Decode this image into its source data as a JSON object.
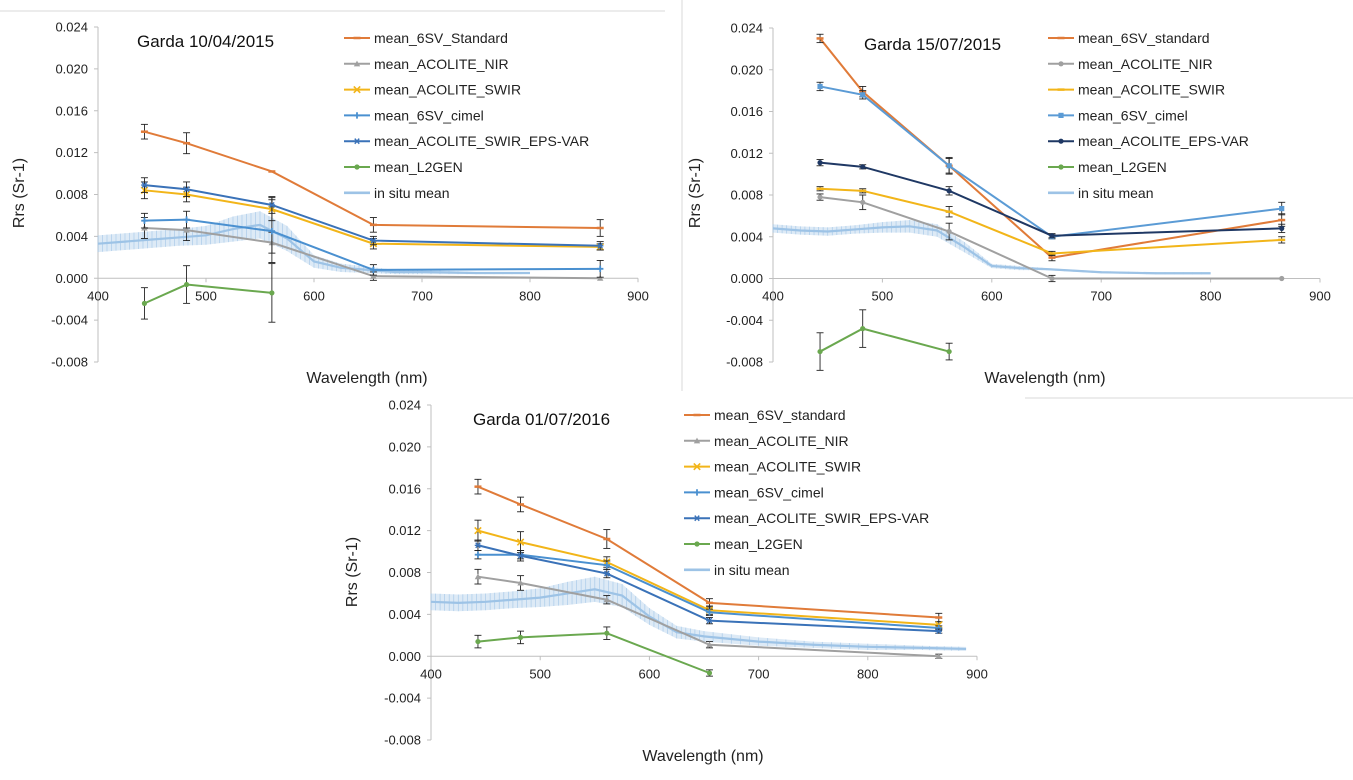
{
  "chart_data": [
    {
      "type": "line",
      "title": "Garda 10/04/2015",
      "xlabel": "Wavelength (nm)",
      "ylabel": "Rrs (Sr-1)",
      "xlim": [
        400,
        900
      ],
      "ylim": [
        -0.008,
        0.024
      ],
      "x_ticks": [
        "400",
        "500",
        "600",
        "700",
        "800",
        "900"
      ],
      "y_ticks": [
        "0.024",
        "0.020",
        "0.016",
        "0.012",
        "0.008",
        "0.004",
        "0.000",
        "-0.004",
        "-0.008"
      ],
      "grid": false,
      "legend_position": "top-right",
      "series": [
        {
          "name": "mean_6SV_Standard",
          "color": "#E07B39",
          "marker": "dash",
          "x": [
            443,
            482,
            561,
            655,
            865
          ],
          "y": [
            0.014,
            0.0129,
            0.0102,
            0.0051,
            0.0048
          ],
          "err": [
            0.0007,
            0.001,
            0.0,
            0.0007,
            0.0008
          ]
        },
        {
          "name": "mean_ACOLITE_NIR",
          "color": "#A0A0A0",
          "marker": "triangle",
          "x": [
            443,
            482,
            561,
            655,
            865
          ],
          "y": [
            0.0048,
            0.0046,
            0.0034,
            0.0002,
            0.0
          ],
          "err": [
            0.001,
            0.001,
            0.001,
            0.0004,
            0.0
          ]
        },
        {
          "name": "mean_ACOLITE_SWIR",
          "color": "#F2B519",
          "marker": "x",
          "x": [
            443,
            482,
            561,
            655,
            865
          ],
          "y": [
            0.0084,
            0.008,
            0.0066,
            0.0033,
            0.003
          ],
          "err": [
            0.0008,
            0.0007,
            0.0011,
            0.0005,
            0.0003
          ]
        },
        {
          "name": "mean_6SV_cimel",
          "color": "#4A90D0",
          "marker": "plus",
          "x": [
            443,
            482,
            561,
            655,
            865
          ],
          "y": [
            0.0055,
            0.0056,
            0.0045,
            0.0008,
            0.0009
          ],
          "err": [
            0.0007,
            0.0008,
            0.003,
            0.0005,
            0.0008
          ]
        },
        {
          "name": "mean_ACOLITE_SWIR_EPS-VAR",
          "color": "#3A72B8",
          "marker": "asterisk",
          "x": [
            443,
            482,
            561,
            655,
            865
          ],
          "y": [
            0.0089,
            0.0085,
            0.007,
            0.0036,
            0.0031
          ],
          "err": [
            0.0007,
            0.0007,
            0.0008,
            0.0004,
            0.0004
          ]
        },
        {
          "name": "mean_L2GEN",
          "color": "#6AA84F",
          "marker": "dot",
          "x": [
            443,
            482,
            561
          ],
          "y": [
            -0.0024,
            -0.0006,
            -0.0014
          ],
          "err": [
            0.0015,
            0.0018,
            0.0028
          ]
        },
        {
          "name": "in situ mean",
          "color": "#9DC3E6",
          "marker": "band",
          "x": [
            400,
            425,
            450,
            475,
            500,
            525,
            550,
            575,
            600,
            625,
            650,
            675,
            700,
            750,
            800
          ],
          "y": [
            0.0033,
            0.0035,
            0.0037,
            0.0039,
            0.0041,
            0.0047,
            0.0051,
            0.0038,
            0.0016,
            0.001,
            0.0008,
            0.0006,
            0.0006,
            0.0005,
            0.0005
          ],
          "err": [
            0.0008,
            0.0008,
            0.0008,
            0.0008,
            0.0009,
            0.0012,
            0.0013,
            0.0012,
            0.0006,
            0.0004,
            0.0003,
            0.0002,
            0.0002,
            0.0001,
            0.0001
          ]
        }
      ]
    },
    {
      "type": "line",
      "title": "Garda 15/07/2015",
      "xlabel": "Wavelength (nm)",
      "ylabel": "Rrs (Sr-1)",
      "xlim": [
        400,
        900
      ],
      "ylim": [
        -0.008,
        0.024
      ],
      "x_ticks": [
        "400",
        "500",
        "600",
        "700",
        "800",
        "900"
      ],
      "y_ticks": [
        "0.024",
        "0.020",
        "0.016",
        "0.012",
        "0.008",
        "0.004",
        "0.000",
        "-0.004",
        "-0.008"
      ],
      "grid": false,
      "legend_position": "top-right",
      "series": [
        {
          "name": "mean_6SV_standard",
          "color": "#E07B39",
          "marker": "dash",
          "x": [
            443,
            482,
            561,
            655,
            865
          ],
          "y": [
            0.023,
            0.0179,
            0.0108,
            0.002,
            0.0056
          ],
          "err": [
            0.0004,
            0.0005,
            0.0007,
            0.0003,
            0.0006
          ]
        },
        {
          "name": "mean_ACOLITE_NIR",
          "color": "#A0A0A0",
          "marker": "dot",
          "x": [
            443,
            482,
            561,
            655,
            865
          ],
          "y": [
            0.0078,
            0.0073,
            0.0045,
            0.0,
            0.0
          ],
          "err": [
            0.0003,
            0.0007,
            0.0008,
            0.0003,
            0.0
          ]
        },
        {
          "name": "mean_ACOLITE_SWIR",
          "color": "#F2B519",
          "marker": "dash",
          "x": [
            443,
            482,
            561,
            655,
            865
          ],
          "y": [
            0.0086,
            0.0084,
            0.0064,
            0.0024,
            0.0037
          ],
          "err": [
            0.0002,
            0.0002,
            0.0005,
            0.0002,
            0.0003
          ]
        },
        {
          "name": "mean_6SV_cimel",
          "color": "#5B9BD5",
          "marker": "square",
          "x": [
            443,
            482,
            561,
            655,
            865
          ],
          "y": [
            0.0184,
            0.0176,
            0.0108,
            0.004,
            0.0067
          ],
          "err": [
            0.0004,
            0.0004,
            0.0008,
            0.0002,
            0.0006
          ]
        },
        {
          "name": "mean_ACOLITE_EPS-VAR",
          "color": "#1F3864",
          "marker": "dot",
          "x": [
            443,
            482,
            561,
            655,
            865
          ],
          "y": [
            0.0111,
            0.0107,
            0.0084,
            0.0041,
            0.0048
          ],
          "err": [
            0.0003,
            0.0002,
            0.0004,
            0.0002,
            0.0004
          ]
        },
        {
          "name": "mean_L2GEN",
          "color": "#6AA84F",
          "marker": "dot",
          "x": [
            443,
            482,
            561
          ],
          "y": [
            -0.007,
            -0.0048,
            -0.007
          ],
          "err": [
            0.0018,
            0.0018,
            0.0008
          ]
        },
        {
          "name": "in situ mean",
          "color": "#9DC3E6",
          "marker": "band",
          "x": [
            400,
            425,
            450,
            475,
            500,
            525,
            550,
            575,
            600,
            625,
            650,
            700,
            750,
            800
          ],
          "y": [
            0.0048,
            0.0046,
            0.0045,
            0.0047,
            0.0049,
            0.005,
            0.0046,
            0.003,
            0.0012,
            0.001,
            0.0009,
            0.0006,
            0.0005,
            0.0005
          ],
          "err": [
            0.0004,
            0.0004,
            0.0004,
            0.0004,
            0.0005,
            0.0006,
            0.0006,
            0.0005,
            0.0002,
            0.0002,
            0.0001,
            0.0001,
            0.0001,
            0.0001
          ]
        }
      ]
    },
    {
      "type": "line",
      "title": "Garda 01/07/2016",
      "xlabel": "Wavelength (nm)",
      "ylabel": "Rrs (Sr-1)",
      "xlim": [
        400,
        900
      ],
      "ylim": [
        -0.008,
        0.024
      ],
      "x_ticks": [
        "400",
        "500",
        "600",
        "700",
        "800",
        "900"
      ],
      "y_ticks": [
        "0.024",
        "0.020",
        "0.016",
        "0.012",
        "0.008",
        "0.004",
        "0.000",
        "-0.004",
        "-0.008"
      ],
      "grid": false,
      "legend_position": "top-right",
      "series": [
        {
          "name": "mean_6SV_standard",
          "color": "#E07B39",
          "marker": "dash",
          "x": [
            443,
            482,
            561,
            655,
            865
          ],
          "y": [
            0.0162,
            0.0145,
            0.0112,
            0.0051,
            0.0037
          ],
          "err": [
            0.0007,
            0.0007,
            0.0009,
            0.0004,
            0.0004
          ]
        },
        {
          "name": "mean_ACOLITE_NIR",
          "color": "#A0A0A0",
          "marker": "triangle",
          "x": [
            443,
            482,
            561,
            655,
            865
          ],
          "y": [
            0.0076,
            0.007,
            0.0054,
            0.0011,
            0.0
          ],
          "err": [
            0.0007,
            0.0007,
            0.0004,
            0.0003,
            0.0002
          ]
        },
        {
          "name": "mean_ACOLITE_SWIR",
          "color": "#F2B519",
          "marker": "x",
          "x": [
            443,
            482,
            561,
            655,
            865
          ],
          "y": [
            0.012,
            0.0109,
            0.009,
            0.0044,
            0.003
          ],
          "err": [
            0.001,
            0.001,
            0.0005,
            0.0004,
            0.0003
          ]
        },
        {
          "name": "mean_6SV_cimel",
          "color": "#4A90D0",
          "marker": "plus",
          "x": [
            443,
            482,
            561,
            655,
            865
          ],
          "y": [
            0.0097,
            0.0097,
            0.0087,
            0.0042,
            0.0027
          ],
          "err": [
            0.0004,
            0.0004,
            0.0004,
            0.0003,
            0.0002
          ]
        },
        {
          "name": "mean_ACOLITE_SWIR_EPS-VAR",
          "color": "#3A72B8",
          "marker": "asterisk",
          "x": [
            443,
            482,
            561,
            655,
            865
          ],
          "y": [
            0.0106,
            0.0096,
            0.0079,
            0.0034,
            0.0024
          ],
          "err": [
            0.0005,
            0.0005,
            0.0004,
            0.0003,
            0.0002
          ]
        },
        {
          "name": "mean_L2GEN",
          "color": "#6AA84F",
          "marker": "dot",
          "x": [
            443,
            482,
            561,
            655
          ],
          "y": [
            0.0014,
            0.0018,
            0.0022,
            -0.0016
          ],
          "err": [
            0.0006,
            0.0006,
            0.0006,
            0.0003
          ]
        },
        {
          "name": "in situ mean",
          "color": "#9DC3E6",
          "marker": "band",
          "x": [
            400,
            425,
            450,
            475,
            500,
            525,
            550,
            575,
            600,
            625,
            650,
            700,
            750,
            800,
            850,
            890
          ],
          "y": [
            0.0052,
            0.0051,
            0.0052,
            0.0054,
            0.0056,
            0.006,
            0.0064,
            0.0058,
            0.0038,
            0.0023,
            0.0019,
            0.0014,
            0.0011,
            0.0009,
            0.0008,
            0.0007
          ],
          "err": [
            0.0008,
            0.0008,
            0.0008,
            0.0008,
            0.0009,
            0.0011,
            0.0012,
            0.0011,
            0.0008,
            0.0006,
            0.0005,
            0.0004,
            0.0003,
            0.0003,
            0.0002,
            0.0002
          ]
        }
      ]
    }
  ]
}
